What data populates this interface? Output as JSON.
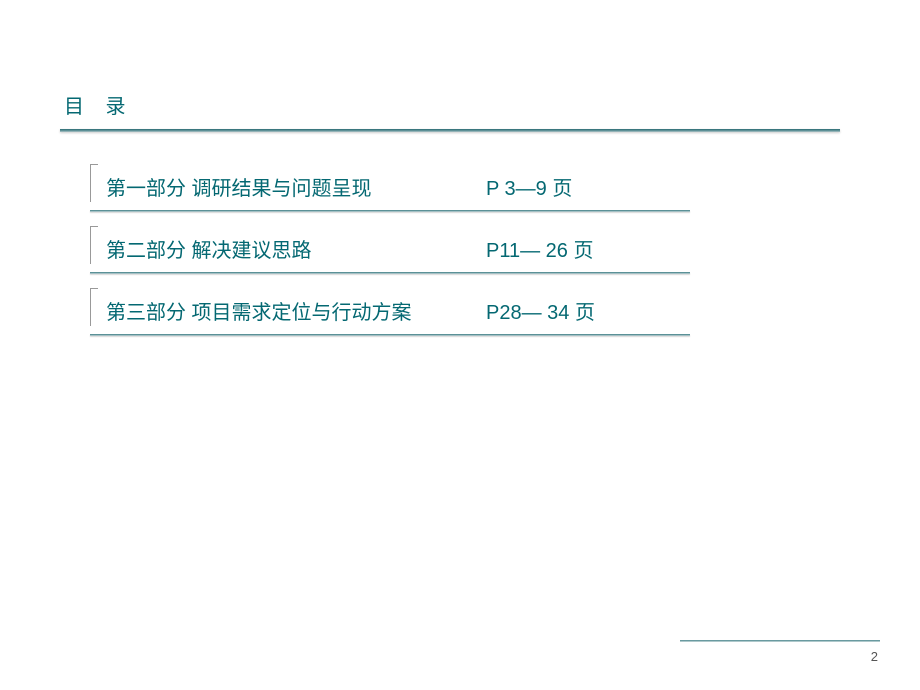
{
  "title": "目 录",
  "toc": [
    {
      "label": "第一部分 调研结果与问题呈现",
      "pages": "P 3—9 页"
    },
    {
      "label": "第二部分 解决建议思路",
      "pages": "P11— 26 页"
    },
    {
      "label": "第三部分 项目需求定位与行动方案",
      "pages": "P28— 34 页"
    }
  ],
  "pageNumber": "2",
  "colors": {
    "text": "#046872",
    "underline_dark": "#2a6b72",
    "underline_light": "#b0c5c8",
    "background": "#ffffff"
  }
}
